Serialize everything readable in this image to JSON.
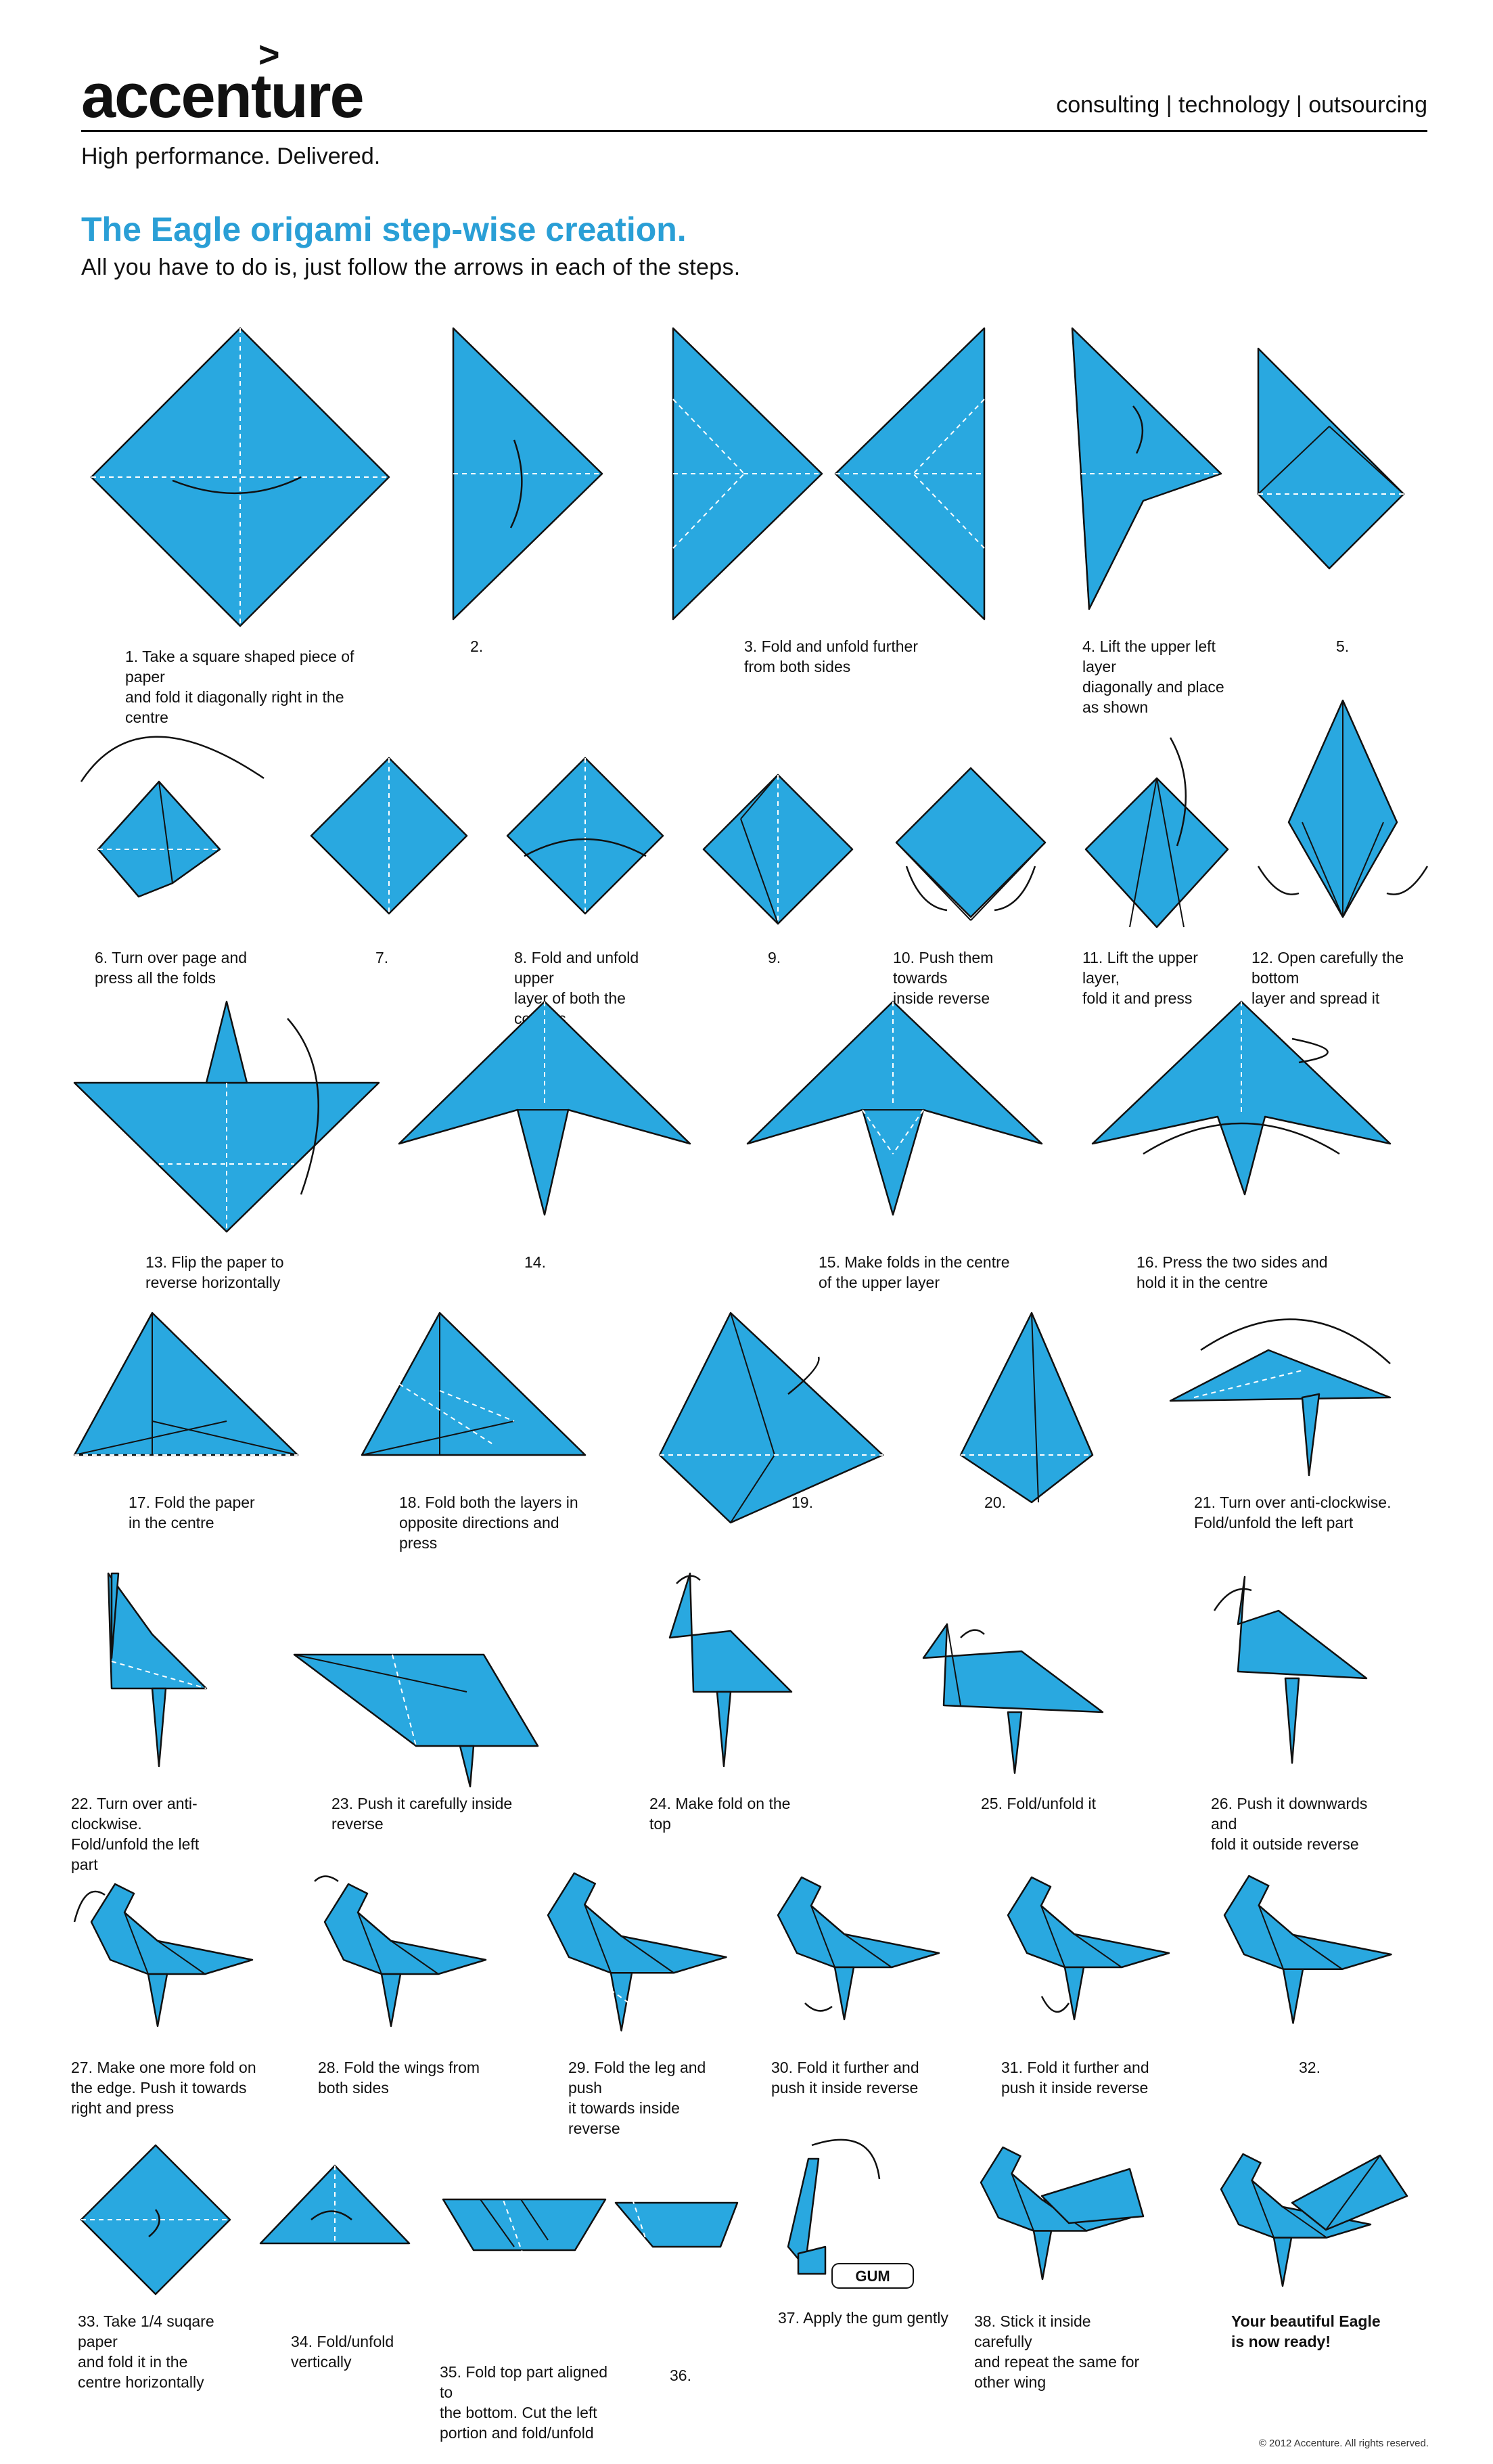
{
  "header": {
    "logo": "accenture",
    "logo_mark": ">",
    "services": "consulting | technology | outsourcing",
    "tagline": "High performance. Delivered."
  },
  "title": "The Eagle origami step-wise creation.",
  "subtitle": "All you have to do is, just follow the arrows in each of the steps.",
  "colors": {
    "paper": "#29a8e0",
    "title": "#2a9fd6",
    "ink": "#111111"
  },
  "steps": [
    {
      "caption": "1. Take a square shaped piece of paper\n    and fold it diagonally right in the centre"
    },
    {
      "caption": "2."
    },
    {
      "caption": "3. Fold and unfold further\n    from both sides"
    },
    {
      "caption": "4. Lift the upper left layer\n    diagonally and place\n    as shown"
    },
    {
      "caption": "5."
    },
    {
      "caption": "6. Turn over page and\n    press all the folds"
    },
    {
      "caption": "7."
    },
    {
      "caption": "8. Fold and unfold upper\n    layer of both the corners"
    },
    {
      "caption": "9."
    },
    {
      "caption": "10. Push them towards\n      inside reverse"
    },
    {
      "caption": "11. Lift the upper layer,\n      fold it and press"
    },
    {
      "caption": "12. Open carefully the bottom\n      layer and spread it"
    },
    {
      "caption": "13. Flip the paper to\n      reverse horizontally"
    },
    {
      "caption": "14."
    },
    {
      "caption": "15. Make folds in the centre\n      of the upper layer"
    },
    {
      "caption": "16. Press the two sides and\n      hold it in the centre"
    },
    {
      "caption": "17. Fold the paper\n      in the centre"
    },
    {
      "caption": "18. Fold both the layers in\n      opposite directions and press"
    },
    {
      "caption": "19."
    },
    {
      "caption": "20."
    },
    {
      "caption": "21. Turn over anti-clockwise.\n      Fold/unfold the left part"
    },
    {
      "caption": "22. Turn over anti-clockwise.\n      Fold/unfold the left part"
    },
    {
      "caption": "23. Push it carefully inside reverse"
    },
    {
      "caption": "24. Make fold on the top"
    },
    {
      "caption": "25. Fold/unfold it"
    },
    {
      "caption": "26. Push it downwards and\n      fold it outside reverse"
    },
    {
      "caption": "27. Make one more fold on\n      the edge. Push it towards\n      right and press"
    },
    {
      "caption": "28. Fold the wings from\n      both sides"
    },
    {
      "caption": "29. Fold the leg and push\n      it towards inside reverse"
    },
    {
      "caption": "30. Fold it further and\n      push it inside reverse"
    },
    {
      "caption": "31. Fold it further and\n      push it inside reverse"
    },
    {
      "caption": "32."
    },
    {
      "caption": "33. Take 1/4 suqare paper\n      and fold it in the\n      centre horizontally"
    },
    {
      "caption": "34. Fold/unfold\n      vertically"
    },
    {
      "caption": "35. Fold top part aligned to\n      the bottom. Cut the left\n      portion and fold/unfold"
    },
    {
      "caption": "36."
    },
    {
      "caption": "37. Apply the gum gently",
      "label": "GUM"
    },
    {
      "caption": "38. Stick it inside carefully\n      and repeat the same for\n      other wing"
    },
    {
      "caption": "Your beautiful Eagle\nis now ready!"
    }
  ],
  "copyright": "© 2012 Accenture. All rights reserved."
}
